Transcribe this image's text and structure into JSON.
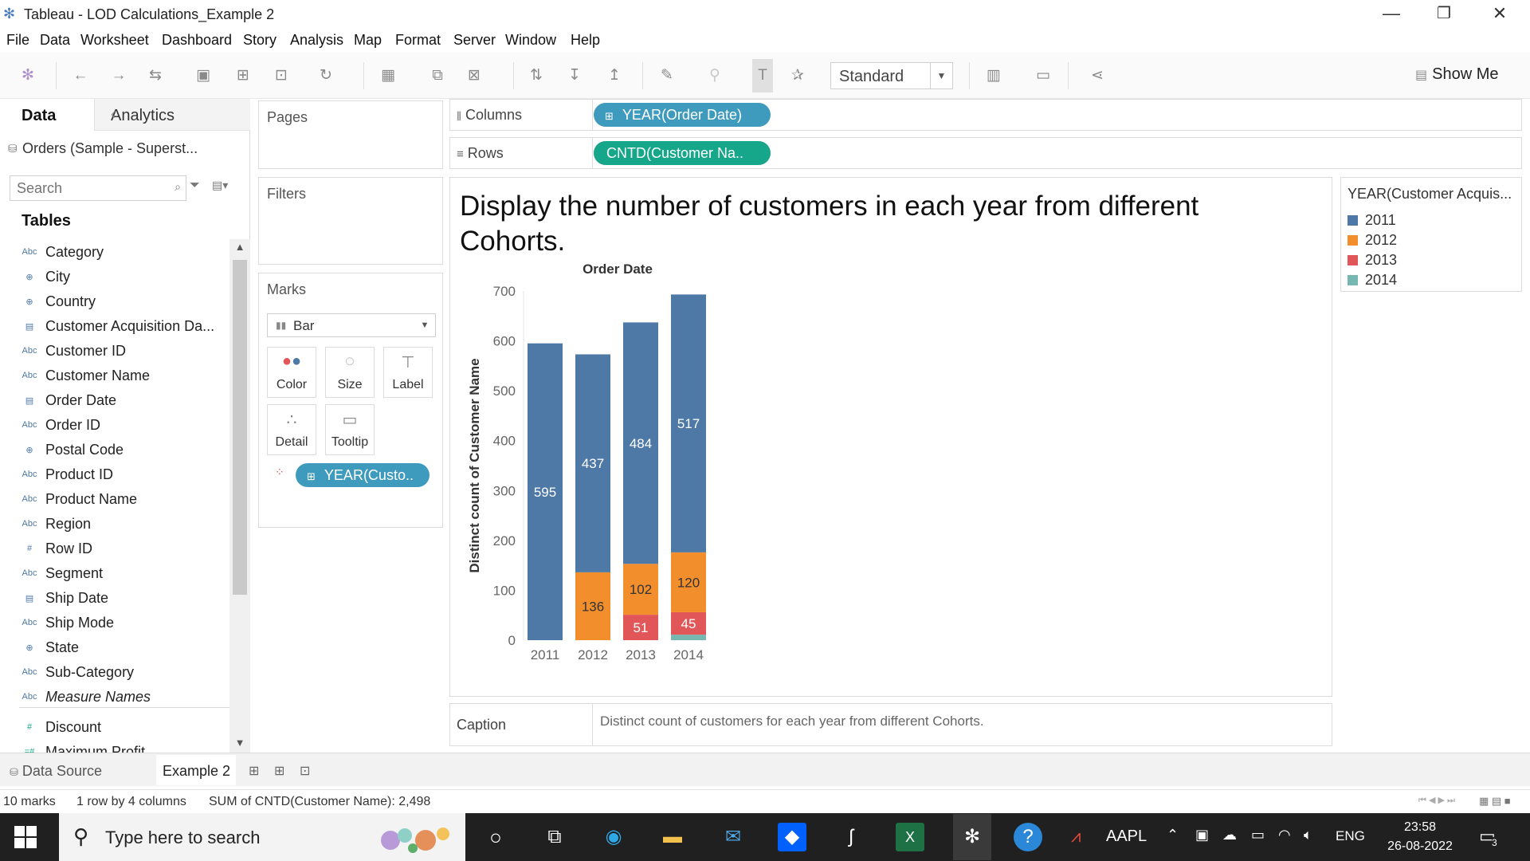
{
  "window": {
    "title": "Tableau - LOD Calculations_Example 2",
    "controls": [
      "—",
      "❐",
      "✕"
    ]
  },
  "menu": [
    "File",
    "Data",
    "Worksheet",
    "Dashboard",
    "Story",
    "Analysis",
    "Map",
    "Format",
    "Server",
    "Window",
    "Help"
  ],
  "toolbar": {
    "fit_value": "Standard",
    "show_me_label": "Show Me"
  },
  "data_pane": {
    "tab_data": "Data",
    "tab_analytics": "Analytics",
    "datasource": "Orders (Sample - Superst...",
    "search_placeholder": "Search",
    "tables_label": "Tables",
    "fields": [
      {
        "icon": "Abc",
        "name": "Category"
      },
      {
        "icon": "⊕",
        "name": "City"
      },
      {
        "icon": "⊕",
        "name": "Country"
      },
      {
        "icon": "▤",
        "name": "Customer Acquisition Da..."
      },
      {
        "icon": "Abc",
        "name": "Customer ID"
      },
      {
        "icon": "Abc",
        "name": "Customer Name"
      },
      {
        "icon": "▤",
        "name": "Order Date"
      },
      {
        "icon": "Abc",
        "name": "Order ID"
      },
      {
        "icon": "⊕",
        "name": "Postal Code"
      },
      {
        "icon": "Abc",
        "name": "Product ID"
      },
      {
        "icon": "Abc",
        "name": "Product Name"
      },
      {
        "icon": "Abc",
        "name": "Region"
      },
      {
        "icon": "#",
        "name": "Row ID"
      },
      {
        "icon": "Abc",
        "name": "Segment"
      },
      {
        "icon": "▤",
        "name": "Ship Date"
      },
      {
        "icon": "Abc",
        "name": "Ship Mode"
      },
      {
        "icon": "⊕",
        "name": "State"
      },
      {
        "icon": "Abc",
        "name": "Sub-Category"
      },
      {
        "icon": "Abc",
        "name": "Measure Names"
      }
    ],
    "measures": [
      {
        "icon": "#",
        "name": "Discount"
      },
      {
        "icon": "=#",
        "name": "Maximum Profit"
      }
    ]
  },
  "cards": {
    "pages": "Pages",
    "filters": "Filters",
    "marks": "Marks",
    "mark_type": "Bar",
    "mark_buttons": [
      {
        "icon": "color",
        "label": "Color"
      },
      {
        "icon": "size",
        "label": "Size"
      },
      {
        "icon": "label",
        "label": "Label"
      },
      {
        "icon": "detail",
        "label": "Detail"
      },
      {
        "icon": "tooltip",
        "label": "Tooltip"
      }
    ],
    "color_pill": "YEAR(Custo.."
  },
  "shelves": {
    "columns_label": "Columns",
    "columns_pill": "YEAR(Order Date)",
    "rows_label": "Rows",
    "rows_pill": "CNTD(Customer Na.."
  },
  "viz": {
    "title": "Display the number of customers in each year from different Cohorts."
  },
  "chart_data": {
    "type": "bar",
    "stacked": true,
    "title": "Order Date",
    "xlabel": "Order Date",
    "ylabel": "Distinct count of Customer Name",
    "ylim": [
      0,
      700
    ],
    "yticks": [
      0,
      100,
      200,
      300,
      400,
      500,
      600,
      700
    ],
    "categories": [
      "2011",
      "2012",
      "2013",
      "2014"
    ],
    "series": [
      {
        "name": "2011",
        "color": "#4e79a7",
        "values": [
          595,
          437,
          484,
          517
        ]
      },
      {
        "name": "2012",
        "color": "#f28e2b",
        "values": [
          0,
          136,
          102,
          120
        ]
      },
      {
        "name": "2013",
        "color": "#e15759",
        "values": [
          0,
          0,
          51,
          45
        ]
      },
      {
        "name": "2014",
        "color": "#76b7b2",
        "values": [
          0,
          0,
          0,
          11
        ]
      }
    ],
    "label_color_light": "#ffffff",
    "label_color_dark": "#333333"
  },
  "legend": {
    "title": "YEAR(Customer Acquis...",
    "items": [
      {
        "label": "2011",
        "color": "#4e79a7"
      },
      {
        "label": "2012",
        "color": "#f28e2b"
      },
      {
        "label": "2013",
        "color": "#e15759"
      },
      {
        "label": "2014",
        "color": "#76b7b2"
      }
    ]
  },
  "caption": {
    "label": "Caption",
    "text": "Distinct count of customers for each year from different Cohorts."
  },
  "sheet_tabs": {
    "data_source": "Data Source",
    "active_sheet": "Example 2"
  },
  "status": {
    "marks": "10 marks",
    "dims": "1 row by 4 columns",
    "sum": "SUM of CNTD(Customer Name): 2,498"
  },
  "taskbar": {
    "search_placeholder": "Type here to search",
    "ticker": "AAPL",
    "language": "ENG",
    "time": "23:58",
    "date": "26-08-2022",
    "notifications": "3"
  }
}
